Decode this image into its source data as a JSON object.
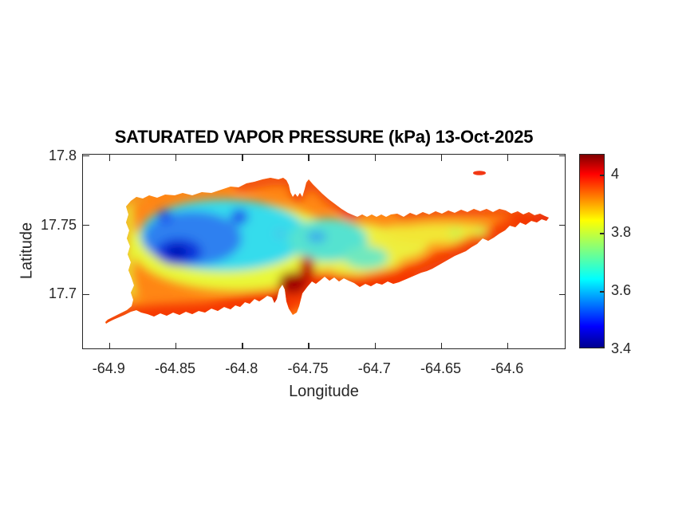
{
  "figure": {
    "title": "SATURATED VAPOR PRESSURE (kPa) 13-Oct-2025",
    "background_color": "#FFFFFF",
    "axis_color": "#262626"
  },
  "axes": {
    "xlabel": "Longitude",
    "ylabel": "Latitude",
    "x_ticks": [
      -64.9,
      -64.85,
      -64.8,
      -64.75,
      -64.7,
      -64.65,
      -64.6
    ],
    "x_tick_labels": [
      "-64.9",
      "-64.85",
      "-64.8",
      "-64.75",
      "-64.7",
      "-64.65",
      "-64.6"
    ],
    "y_ticks": [
      17.8,
      17.75,
      17.7
    ],
    "y_tick_labels": [
      "17.8",
      "17.75",
      "17.7"
    ],
    "xlim": [
      -64.92,
      -64.556
    ],
    "ylim": [
      17.66,
      17.801
    ]
  },
  "colorbar": {
    "ticks": [
      4,
      3.8,
      3.6,
      3.4
    ],
    "tick_labels": [
      "4",
      "3.8",
      "3.6",
      "3.4"
    ],
    "range": [
      3.4,
      4.07
    ],
    "colormap": "jet",
    "gradient_stops": [
      {
        "p": 0.0,
        "c": "#00008F"
      },
      {
        "p": 0.11,
        "c": "#0000FF"
      },
      {
        "p": 0.355,
        "c": "#00FFFF"
      },
      {
        "p": 0.66,
        "c": "#FFFF00"
      },
      {
        "p": 0.9,
        "c": "#FF0000"
      },
      {
        "p": 1.0,
        "c": "#800000"
      }
    ]
  },
  "chart_data": {
    "type": "heatmap",
    "title": "SATURATED VAPOR PRESSURE (kPa) 13-Oct-2025",
    "units": "kPa",
    "date": "13-Oct-2025",
    "xlabel": "Longitude",
    "ylabel": "Latitude",
    "xlim": [
      -64.92,
      -64.556
    ],
    "ylim": [
      17.66,
      17.801
    ],
    "colormap": "jet",
    "value_range": [
      3.4,
      4.07
    ],
    "grid": false,
    "legend": "colorbar right",
    "features": [
      {
        "lon": -64.849,
        "lat": 17.731,
        "value": 3.42,
        "label": "field minimum, west-central interior (deep blue core)"
      },
      {
        "lon": -64.858,
        "lat": 17.757,
        "value": 3.52,
        "label": "local low, northwest interior (blue spot)"
      },
      {
        "lon": -64.802,
        "lat": 17.757,
        "value": 3.52,
        "label": "local low, north-central interior (blue spot)"
      },
      {
        "lon": -64.745,
        "lat": 17.742,
        "value": 3.62,
        "label": "local low, mid-island (light-blue spot)"
      },
      {
        "lon": -64.79,
        "lat": 17.735,
        "value": 3.6,
        "label": "cyan band across western interior"
      },
      {
        "lon": -64.8,
        "lat": 17.72,
        "value": 3.8,
        "label": "yellow-green transition ring around cool core"
      },
      {
        "lon": -64.754,
        "lat": 17.714,
        "value": 4.07,
        "label": "field maximum, south-central coast (dark red)"
      },
      {
        "lon": -64.77,
        "lat": 17.7,
        "value": 4.0,
        "label": "red band along southern coast"
      },
      {
        "lon": -64.9,
        "lat": 17.68,
        "value": 3.95,
        "label": "southwest sand-spit point (orange-red)"
      },
      {
        "lon": -64.78,
        "lat": 17.77,
        "value": 3.9,
        "label": "orange-red band along north-central coast"
      },
      {
        "lon": -64.66,
        "lat": 17.745,
        "value": 3.85,
        "label": "eastern interior (orange with yellow spine)"
      },
      {
        "lon": -64.64,
        "lat": 17.755,
        "value": 3.8,
        "label": "yellow-green local lows on east ridge"
      },
      {
        "lon": -64.57,
        "lat": 17.754,
        "value": 3.98,
        "label": "east point (red)"
      },
      {
        "lon": -64.62,
        "lat": 17.787,
        "value": 3.95,
        "label": "small offshore islet north-east (red)"
      }
    ]
  }
}
